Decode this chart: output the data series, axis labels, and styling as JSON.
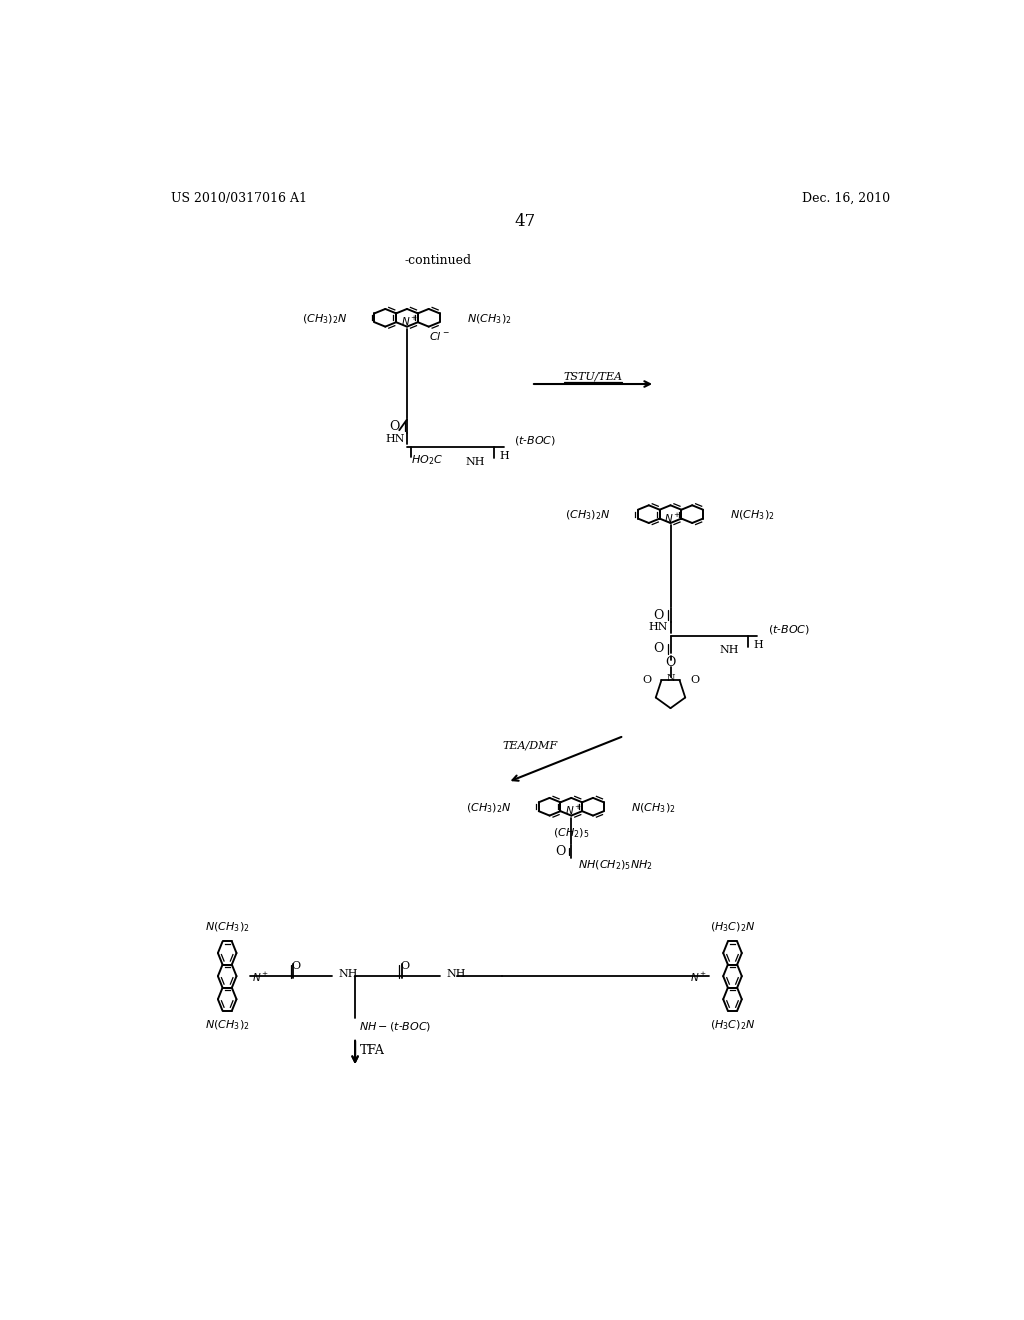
{
  "bg": "#ffffff",
  "header_left": "US 2010/0317016 A1",
  "header_right": "Dec. 16, 2010",
  "page_num": "47",
  "continued": "-continued",
  "rxn1": "TSTU/TEA",
  "rxn2": "TEA/DMF",
  "rxn3": "TFA"
}
